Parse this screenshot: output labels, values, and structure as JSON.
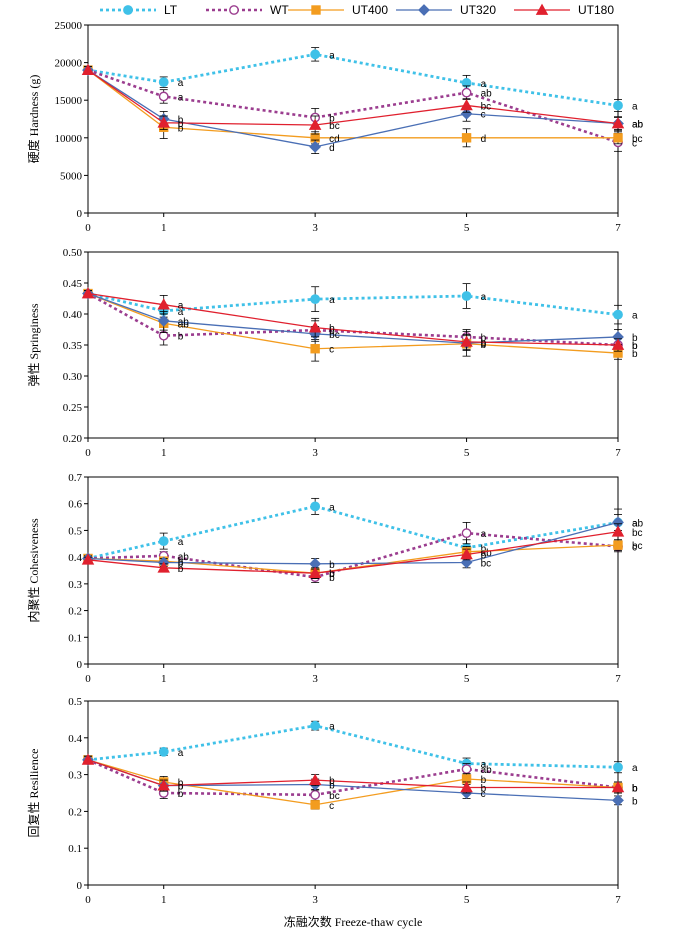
{
  "legend": [
    "LT",
    "WT",
    "UT400",
    "UT320",
    "UT180"
  ],
  "styles": {
    "LT": {
      "color": "#3fc1e8",
      "dash": "3,3",
      "width": 2.8,
      "marker": "circle",
      "fill": "#3fc1e8"
    },
    "WT": {
      "color": "#9b3d8f",
      "dash": "3,3",
      "width": 2.6,
      "marker": "circle",
      "fill": "#ffffff"
    },
    "UT400": {
      "color": "#f39c1f",
      "dash": "",
      "width": 1.3,
      "marker": "square",
      "fill": "#f39c1f"
    },
    "UT320": {
      "color": "#4a6fb5",
      "dash": "",
      "width": 1.3,
      "marker": "diamond",
      "fill": "#4a6fb5"
    },
    "UT180": {
      "color": "#e0202e",
      "dash": "",
      "width": 1.3,
      "marker": "triangle",
      "fill": "#e0202e"
    }
  },
  "x_title": "冻融次数 Freeze-thaw cycle",
  "chart_data": [
    {
      "type": "line",
      "ylabel": "硬度 Hardness (g)",
      "x": [
        0,
        1,
        3,
        5,
        7
      ],
      "xlim": [
        0,
        7
      ],
      "ylim": [
        0,
        25000
      ],
      "yticks": [
        "0",
        "5000",
        "10000",
        "15000",
        "20000",
        "25000"
      ],
      "xticks": [
        "0",
        "1",
        "3",
        "5",
        "7"
      ],
      "series": [
        {
          "name": "LT",
          "values": [
            19000,
            17400,
            21100,
            17300,
            14300
          ],
          "err": [
            500,
            700,
            900,
            1000,
            800
          ],
          "letters": [
            "",
            "a",
            "a",
            "a",
            "a"
          ]
        },
        {
          "name": "WT",
          "values": [
            19000,
            15500,
            12700,
            16000,
            9400
          ],
          "err": [
            500,
            900,
            1200,
            900,
            1200
          ],
          "letters": [
            "",
            "a",
            "b",
            "ab",
            "c"
          ]
        },
        {
          "name": "UT400",
          "values": [
            19000,
            11400,
            10000,
            10000,
            10000
          ],
          "err": [
            500,
            1500,
            800,
            1200,
            800
          ],
          "letters": [
            "",
            "b",
            "cd",
            "d",
            "bc"
          ]
        },
        {
          "name": "UT320",
          "values": [
            19000,
            12500,
            8800,
            13200,
            11900
          ],
          "err": [
            500,
            1000,
            900,
            1000,
            900
          ],
          "letters": [
            "",
            "b",
            "d",
            "c",
            "ab"
          ]
        },
        {
          "name": "UT180",
          "values": [
            19000,
            12000,
            11700,
            14300,
            11900
          ],
          "err": [
            500,
            900,
            1200,
            900,
            800
          ],
          "letters": [
            "",
            "b",
            "bc",
            "bc",
            "ab"
          ]
        }
      ]
    },
    {
      "type": "line",
      "ylabel": "弹性 Springiness",
      "x": [
        0,
        1,
        3,
        5,
        7
      ],
      "xlim": [
        0,
        7
      ],
      "ylim": [
        0.2,
        0.5
      ],
      "yticks": [
        "0.20",
        "0.25",
        "0.30",
        "0.35",
        "0.40",
        "0.45",
        "0.50"
      ],
      "xticks": [
        "0",
        "1",
        "3",
        "5",
        "7"
      ],
      "series": [
        {
          "name": "LT",
          "values": [
            0.433,
            0.405,
            0.424,
            0.429,
            0.399
          ],
          "err": [
            0.005,
            0.01,
            0.02,
            0.02,
            0.015
          ],
          "letters": [
            "",
            "a",
            "a",
            "a",
            "a"
          ]
        },
        {
          "name": "WT",
          "values": [
            0.433,
            0.365,
            0.374,
            0.363,
            0.35
          ],
          "err": [
            0.005,
            0.015,
            0.015,
            0.012,
            0.012
          ],
          "letters": [
            "",
            "b",
            "b",
            "b",
            "b"
          ]
        },
        {
          "name": "UT400",
          "values": [
            0.433,
            0.385,
            0.344,
            0.352,
            0.337
          ],
          "err": [
            0.005,
            0.015,
            0.02,
            0.02,
            0.01
          ],
          "letters": [
            "",
            "ab",
            "c",
            "b",
            "b"
          ]
        },
        {
          "name": "UT320",
          "values": [
            0.433,
            0.389,
            0.368,
            0.353,
            0.363
          ],
          "err": [
            0.005,
            0.015,
            0.012,
            0.012,
            0.012
          ],
          "letters": [
            "",
            "ab",
            "bc",
            "b",
            "b"
          ]
        },
        {
          "name": "UT180",
          "values": [
            0.433,
            0.415,
            0.378,
            0.355,
            0.35
          ],
          "err": [
            0.005,
            0.015,
            0.015,
            0.012,
            0.01
          ],
          "letters": [
            "",
            "a",
            "b",
            "b",
            "b"
          ]
        }
      ]
    },
    {
      "type": "line",
      "ylabel": "内聚性 Cohesiveness",
      "x": [
        0,
        1,
        3,
        5,
        7
      ],
      "xlim": [
        0,
        7
      ],
      "ylim": [
        0,
        0.7
      ],
      "yticks": [
        "0",
        "0.1",
        "0.2",
        "0.3",
        "0.4",
        "0.5",
        "0.6",
        "0.7"
      ],
      "xticks": [
        "0",
        "1",
        "3",
        "5",
        "7"
      ],
      "series": [
        {
          "name": "LT",
          "values": [
            0.395,
            0.46,
            0.59,
            0.435,
            0.53
          ],
          "err": [
            0.01,
            0.03,
            0.03,
            0.03,
            0.03
          ],
          "letters": [
            "",
            "a",
            "a",
            "b",
            "a"
          ]
        },
        {
          "name": "WT",
          "values": [
            0.395,
            0.405,
            0.325,
            0.49,
            0.44
          ],
          "err": [
            0.01,
            0.015,
            0.02,
            0.04,
            0.02
          ],
          "letters": [
            "",
            "ab",
            "b",
            "a",
            "c"
          ]
        },
        {
          "name": "UT400",
          "values": [
            0.395,
            0.385,
            0.34,
            0.42,
            0.445
          ],
          "err": [
            0.01,
            0.015,
            0.02,
            0.02,
            0.02
          ],
          "letters": [
            "",
            "b",
            "b",
            "ab",
            "bc"
          ]
        },
        {
          "name": "UT320",
          "values": [
            0.395,
            0.38,
            0.375,
            0.38,
            0.53
          ],
          "err": [
            0.01,
            0.015,
            0.02,
            0.02,
            0.05
          ],
          "letters": [
            "",
            "b",
            "b",
            "bc",
            "ab"
          ]
        },
        {
          "name": "UT180",
          "values": [
            0.39,
            0.36,
            0.34,
            0.41,
            0.495
          ],
          "err": [
            0.01,
            0.015,
            0.02,
            0.02,
            0.03
          ],
          "letters": [
            "",
            "b",
            "b",
            "b",
            "bc"
          ]
        }
      ]
    },
    {
      "type": "line",
      "ylabel": "回复性 Resilience",
      "x": [
        0,
        1,
        3,
        5,
        7
      ],
      "xlim": [
        0,
        7
      ],
      "ylim": [
        0,
        0.5
      ],
      "yticks": [
        "0",
        "0.1",
        "0.2",
        "0.3",
        "0.4",
        "0.5"
      ],
      "xticks": [
        "0",
        "1",
        "3",
        "5",
        "7"
      ],
      "series": [
        {
          "name": "LT",
          "values": [
            0.34,
            0.362,
            0.433,
            0.33,
            0.32
          ],
          "err": [
            0.01,
            0.01,
            0.012,
            0.015,
            0.015
          ],
          "letters": [
            "",
            "a",
            "a",
            "a",
            "a"
          ]
        },
        {
          "name": "WT",
          "values": [
            0.34,
            0.25,
            0.245,
            0.315,
            0.265
          ],
          "err": [
            0.01,
            0.015,
            0.015,
            0.015,
            0.015
          ],
          "letters": [
            "",
            "b",
            "bc",
            "ab",
            "b"
          ]
        },
        {
          "name": "UT400",
          "values": [
            0.34,
            0.28,
            0.218,
            0.288,
            0.265
          ],
          "err": [
            0.01,
            0.015,
            0.012,
            0.015,
            0.015
          ],
          "letters": [
            "",
            "b",
            "c",
            "b",
            "b"
          ]
        },
        {
          "name": "UT320",
          "values": [
            0.34,
            0.27,
            0.273,
            0.25,
            0.23
          ],
          "err": [
            0.01,
            0.015,
            0.015,
            0.015,
            0.012
          ],
          "letters": [
            "",
            "b",
            "b",
            "c",
            "b"
          ]
        },
        {
          "name": "UT180",
          "values": [
            0.34,
            0.27,
            0.285,
            0.265,
            0.265
          ],
          "err": [
            0.01,
            0.015,
            0.015,
            0.015,
            0.015
          ],
          "letters": [
            "",
            "b",
            "b",
            "b",
            "b"
          ]
        }
      ]
    }
  ]
}
